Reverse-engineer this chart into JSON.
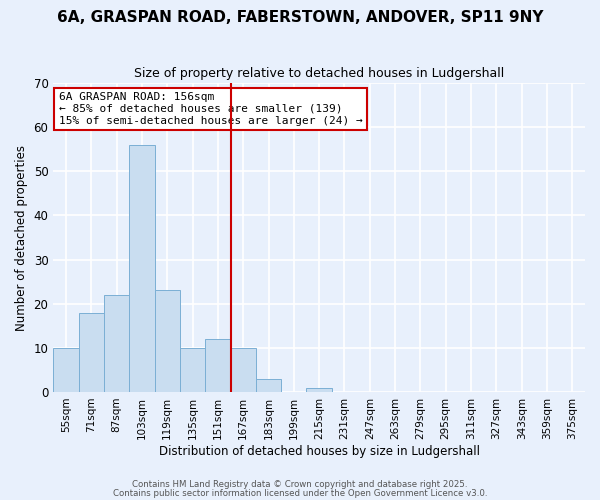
{
  "title": "6A, GRASPAN ROAD, FABERSTOWN, ANDOVER, SP11 9NY",
  "subtitle": "Size of property relative to detached houses in Ludgershall",
  "xlabel": "Distribution of detached houses by size in Ludgershall",
  "ylabel": "Number of detached properties",
  "bin_labels": [
    "55sqm",
    "71sqm",
    "87sqm",
    "103sqm",
    "119sqm",
    "135sqm",
    "151sqm",
    "167sqm",
    "183sqm",
    "199sqm",
    "215sqm",
    "231sqm",
    "247sqm",
    "263sqm",
    "279sqm",
    "295sqm",
    "311sqm",
    "327sqm",
    "343sqm",
    "359sqm",
    "375sqm"
  ],
  "bar_values": [
    10,
    18,
    22,
    56,
    23,
    10,
    12,
    10,
    3,
    0,
    1,
    0,
    0,
    0,
    0,
    0,
    0,
    0,
    0,
    0,
    0
  ],
  "bar_color": "#c9ddf0",
  "bar_edge_color": "#7bafd4",
  "vline_bin_index": 6,
  "ylim": [
    0,
    70
  ],
  "yticks": [
    0,
    10,
    20,
    30,
    40,
    50,
    60,
    70
  ],
  "annotation_title": "6A GRASPAN ROAD: 156sqm",
  "annotation_line1": "← 85% of detached houses are smaller (139)",
  "annotation_line2": "15% of semi-detached houses are larger (24) →",
  "annotation_box_color": "#cc0000",
  "vline_color": "#cc0000",
  "background_color": "#e8f0fc",
  "grid_color": "#ffffff",
  "footer1": "Contains HM Land Registry data © Crown copyright and database right 2025.",
  "footer2": "Contains public sector information licensed under the Open Government Licence v3.0."
}
